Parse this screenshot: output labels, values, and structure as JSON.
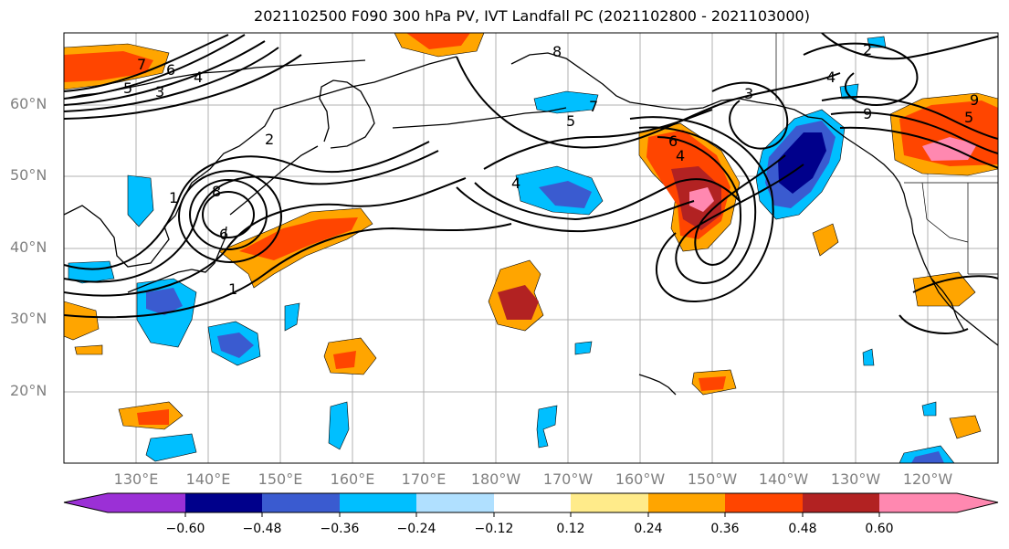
{
  "title": "2021102500 F090 300 hPa PV, IVT Landfall PC (2021102800 - 2021103000)",
  "latitude_labels": [
    "60°N",
    "50°N",
    "40°N",
    "30°N",
    "20°N"
  ],
  "longitude_labels": [
    "130°E",
    "140°E",
    "150°E",
    "160°E",
    "170°E",
    "180°W",
    "170°W",
    "160°W",
    "150°W",
    "140°W",
    "130°W",
    "120°W"
  ],
  "contour_labels": [
    "7",
    "6",
    "5",
    "4",
    "3",
    "2",
    "1",
    "8",
    "6",
    "1",
    "4",
    "5",
    "7",
    "8",
    "6",
    "4",
    "4",
    "3",
    "9",
    "2",
    "5",
    "9"
  ],
  "colorbar": {
    "tick_labels": [
      "−0.60",
      "−0.48",
      "−0.36",
      "−0.24",
      "−0.12",
      "0.12",
      "0.24",
      "0.36",
      "0.48",
      "0.60"
    ],
    "colors": [
      "#9b30d6",
      "#00008b",
      "#3a5bd0",
      "#00bfff",
      "#b0e0ff",
      "#ffffff",
      "#ffeb8a",
      "#ffa500",
      "#ff4500",
      "#b22222",
      "#ff88b0"
    ]
  },
  "colors": {
    "grid": "#b0b0b0",
    "coast": "#000000",
    "axis_label": "#808080"
  }
}
